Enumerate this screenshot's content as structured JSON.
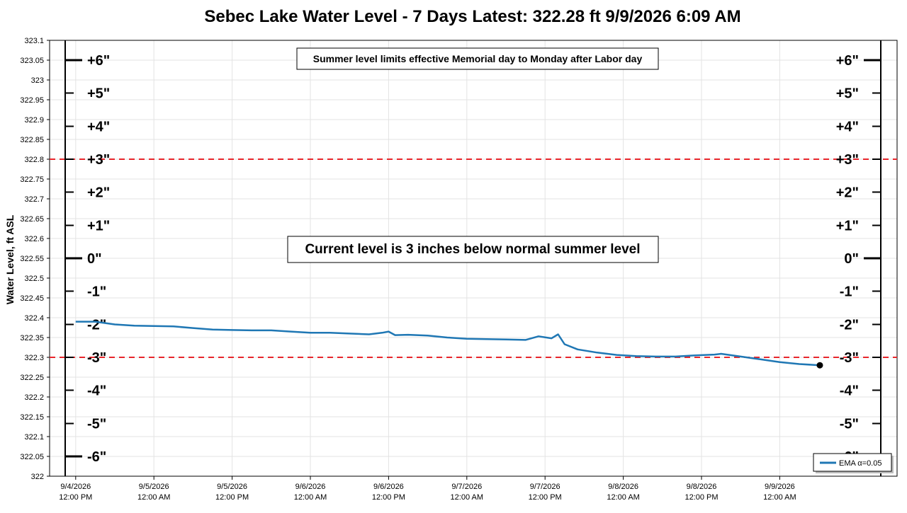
{
  "chart_data": {
    "type": "line",
    "title": "Sebec Lake Water Level - 7 Days   Latest: 322.28 ft   9/9/2026 6:09 AM",
    "ylabel": "Water Level, ft ASL",
    "xlabel": "",
    "ylim": [
      322.0,
      323.1
    ],
    "yticks": [
      "323.1",
      "323.05",
      "323",
      "322.95",
      "322.9",
      "322.85",
      "322.8",
      "322.75",
      "322.7",
      "322.65",
      "322.6",
      "322.55",
      "322.5",
      "322.45",
      "322.4",
      "322.35",
      "322.3",
      "322.25",
      "322.2",
      "322.15",
      "322.1",
      "322.05",
      "322"
    ],
    "xlim": [
      "9/4/2026 08:00",
      "9/9/2026 18:00"
    ],
    "xticks": [
      {
        "date": "9/4/2026",
        "time": "12:00 PM",
        "t": "9/4/2026 12:00"
      },
      {
        "date": "9/5/2026",
        "time": "12:00 AM",
        "t": "9/5/2026 00:00"
      },
      {
        "date": "9/5/2026",
        "time": "12:00 PM",
        "t": "9/5/2026 12:00"
      },
      {
        "date": "9/6/2026",
        "time": "12:00 AM",
        "t": "9/6/2026 00:00"
      },
      {
        "date": "9/6/2026",
        "time": "12:00 PM",
        "t": "9/6/2026 12:00"
      },
      {
        "date": "9/7/2026",
        "time": "12:00 AM",
        "t": "9/7/2026 00:00"
      },
      {
        "date": "9/7/2026",
        "time": "12:00 PM",
        "t": "9/7/2026 12:00"
      },
      {
        "date": "9/8/2026",
        "time": "12:00 AM",
        "t": "9/8/2026 00:00"
      },
      {
        "date": "9/8/2026",
        "time": "12:00 PM",
        "t": "9/8/2026 12:00"
      },
      {
        "date": "9/9/2026",
        "time": "12:00 AM",
        "t": "9/9/2026 00:00"
      }
    ],
    "reference_lines": [
      {
        "y": 322.8,
        "color": "#e8262b"
      },
      {
        "y": 322.3,
        "color": "#e8262b"
      }
    ],
    "inch_scale": [
      {
        "label": "+6\"",
        "y": 323.05
      },
      {
        "label": "+5\"",
        "y": 322.967
      },
      {
        "label": "+4\"",
        "y": 322.883
      },
      {
        "label": "+3\"",
        "y": 322.8
      },
      {
        "label": "+2\"",
        "y": 322.717
      },
      {
        "label": "+1\"",
        "y": 322.633
      },
      {
        "label": "0\"",
        "y": 322.55
      },
      {
        "label": "-1\"",
        "y": 322.467
      },
      {
        "label": "-2\"",
        "y": 322.383
      },
      {
        "label": "-3\"",
        "y": 322.3
      },
      {
        "label": "-4\"",
        "y": 322.217
      },
      {
        "label": "-5\"",
        "y": 322.133
      },
      {
        "label": "-6\"",
        "y": 322.05
      }
    ],
    "annotations": [
      "Summer level limits effective Memorial day to Monday after Labor day",
      "Current level is 3 inches below normal summer level"
    ],
    "legend": {
      "position": "bottom-right",
      "entries": [
        "EMA α=0.05"
      ]
    },
    "grid": true,
    "series": [
      {
        "name": "EMA α=0.05",
        "color": "#1f77b4",
        "points": [
          [
            "9/4/2026 12:00",
            322.39
          ],
          [
            "9/4/2026 15:00",
            322.39
          ],
          [
            "9/4/2026 18:00",
            322.383
          ],
          [
            "9/4/2026 21:00",
            322.38
          ],
          [
            "9/5/2026 00:00",
            322.379
          ],
          [
            "9/5/2026 03:00",
            322.378
          ],
          [
            "9/5/2026 06:00",
            322.374
          ],
          [
            "9/5/2026 09:00",
            322.37
          ],
          [
            "9/5/2026 12:00",
            322.369
          ],
          [
            "9/5/2026 15:00",
            322.368
          ],
          [
            "9/5/2026 18:00",
            322.368
          ],
          [
            "9/5/2026 21:00",
            322.365
          ],
          [
            "9/6/2026 00:00",
            322.362
          ],
          [
            "9/6/2026 03:00",
            322.362
          ],
          [
            "9/6/2026 06:00",
            322.36
          ],
          [
            "9/6/2026 09:00",
            322.358
          ],
          [
            "9/6/2026 11:00",
            322.362
          ],
          [
            "9/6/2026 12:00",
            322.365
          ],
          [
            "9/6/2026 13:00",
            322.356
          ],
          [
            "9/6/2026 15:00",
            322.357
          ],
          [
            "9/6/2026 18:00",
            322.355
          ],
          [
            "9/6/2026 21:00",
            322.35
          ],
          [
            "9/7/2026 00:00",
            322.347
          ],
          [
            "9/7/2026 03:00",
            322.346
          ],
          [
            "9/7/2026 06:00",
            322.345
          ],
          [
            "9/7/2026 09:00",
            322.344
          ],
          [
            "9/7/2026 11:00",
            322.353
          ],
          [
            "9/7/2026 13:00",
            322.348
          ],
          [
            "9/7/2026 14:00",
            322.358
          ],
          [
            "9/7/2026 15:00",
            322.333
          ],
          [
            "9/7/2026 17:00",
            322.32
          ],
          [
            "9/7/2026 20:00",
            322.312
          ],
          [
            "9/7/2026 23:00",
            322.306
          ],
          [
            "9/8/2026 02:00",
            322.303
          ],
          [
            "9/8/2026 05:00",
            322.302
          ],
          [
            "9/8/2026 08:00",
            322.302
          ],
          [
            "9/8/2026 11:00",
            322.305
          ],
          [
            "9/8/2026 14:00",
            322.307
          ],
          [
            "9/8/2026 15:00",
            322.309
          ],
          [
            "9/8/2026 18:00",
            322.302
          ],
          [
            "9/8/2026 21:00",
            322.295
          ],
          [
            "9/9/2026 00:00",
            322.288
          ],
          [
            "9/9/2026 03:00",
            322.283
          ],
          [
            "9/9/2026 06:09",
            322.28
          ]
        ]
      }
    ],
    "latest_marker": {
      "t": "9/9/2026 06:09",
      "y": 322.28,
      "color": "#000000"
    }
  }
}
